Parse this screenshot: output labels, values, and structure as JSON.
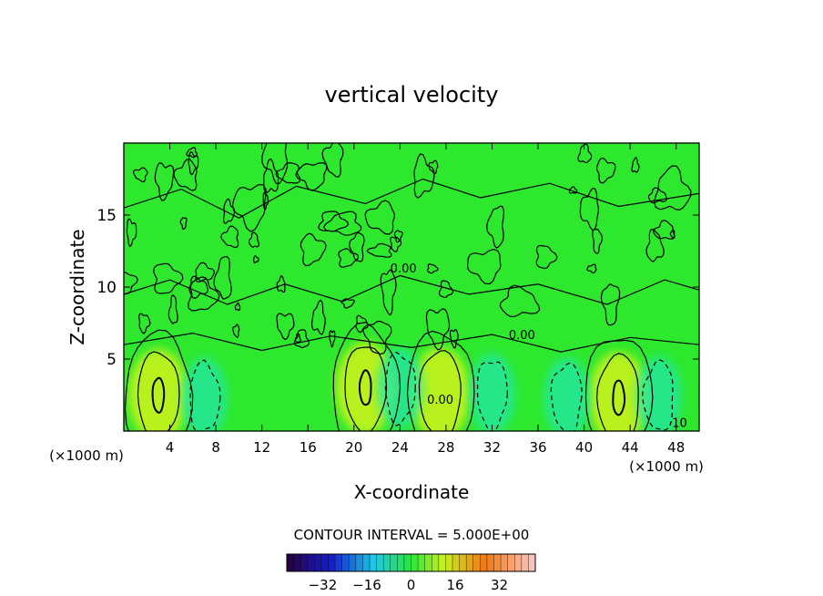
{
  "chart_data": {
    "type": "heatmap",
    "title": "vertical velocity",
    "xlabel": "X-coordinate",
    "ylabel": "Z-coordinate",
    "x_unit_label": "(×1000 m)",
    "y_unit_label": "(×1000 m)",
    "xlim": [
      0,
      50
    ],
    "ylim": [
      0,
      20
    ],
    "x_ticks": [
      4,
      8,
      12,
      16,
      20,
      24,
      28,
      32,
      36,
      40,
      44,
      48
    ],
    "y_ticks": [
      5,
      10,
      15
    ],
    "contour_interval_text": "CONTOUR INTERVAL = 5.000E+00",
    "contour_interval": 5.0,
    "contour_labels": [
      {
        "text": "0.00",
        "x": 24.3,
        "y": 11.0
      },
      {
        "text": "0.00",
        "x": 34.6,
        "y": 6.4
      },
      {
        "text": "0.00",
        "x": 27.5,
        "y": 1.9
      },
      {
        "text": "10",
        "x": 48.3,
        "y": 0.3
      }
    ],
    "updraft_cores": [
      {
        "x": 3.0,
        "y": 2.5,
        "value": 10
      },
      {
        "x": 21.0,
        "y": 3.0,
        "value": 10
      },
      {
        "x": 27.5,
        "y": 2.6,
        "value": 5
      },
      {
        "x": 43.0,
        "y": 2.3,
        "value": 10
      }
    ],
    "downdraft_cores": [
      {
        "x": 7.0,
        "y": 2.3,
        "value": -5
      },
      {
        "x": 24.0,
        "y": 3.0,
        "value": -5
      },
      {
        "x": 32.0,
        "y": 2.6,
        "value": -5
      },
      {
        "x": 38.5,
        "y": 2.3,
        "value": -5
      },
      {
        "x": 46.5,
        "y": 2.4,
        "value": -5
      }
    ],
    "colorbar": {
      "min": -45,
      "max": 45,
      "tick_labels": [
        "−32",
        "−16",
        "0",
        "16",
        "32"
      ],
      "tick_values": [
        -32,
        -16,
        0,
        16,
        32
      ]
    }
  },
  "colors": {
    "background_field": "#2ee82e",
    "updraft": "#c8f21a",
    "downdraft": "#24e6a8",
    "contour_line": "#000000"
  }
}
